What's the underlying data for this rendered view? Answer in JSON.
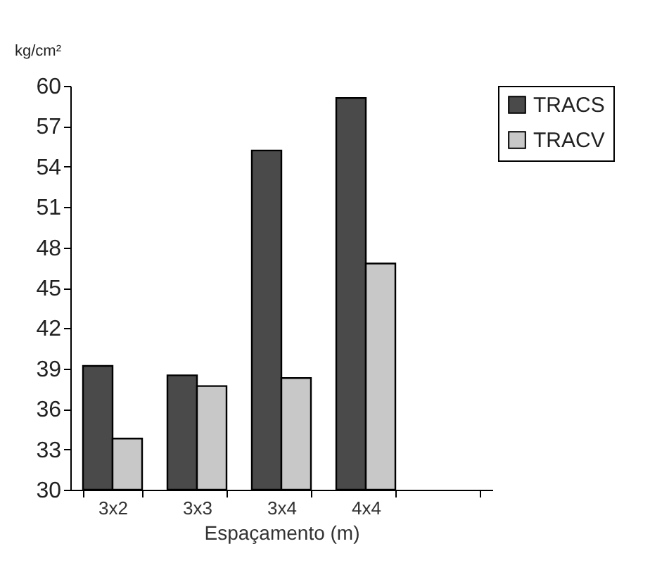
{
  "chart_data": {
    "type": "bar",
    "ylabel": "kg/cm²",
    "xlabel": "Espaçamento (m)",
    "categories": [
      "3x2",
      "3x3",
      "3x4",
      "4x4",
      null
    ],
    "series": [
      {
        "name": "TRACS",
        "color": "#4a4a4a",
        "values": [
          39.2,
          38.5,
          55.2,
          59.1,
          null
        ]
      },
      {
        "name": "TRACV",
        "color": "#c8c8c8",
        "values": [
          33.8,
          37.7,
          38.3,
          46.8,
          null
        ]
      }
    ],
    "ylim": [
      30,
      60
    ],
    "yticks": [
      30,
      33,
      36,
      39,
      42,
      45,
      48,
      51,
      54,
      57,
      60
    ],
    "grid": false,
    "legend": "right"
  }
}
